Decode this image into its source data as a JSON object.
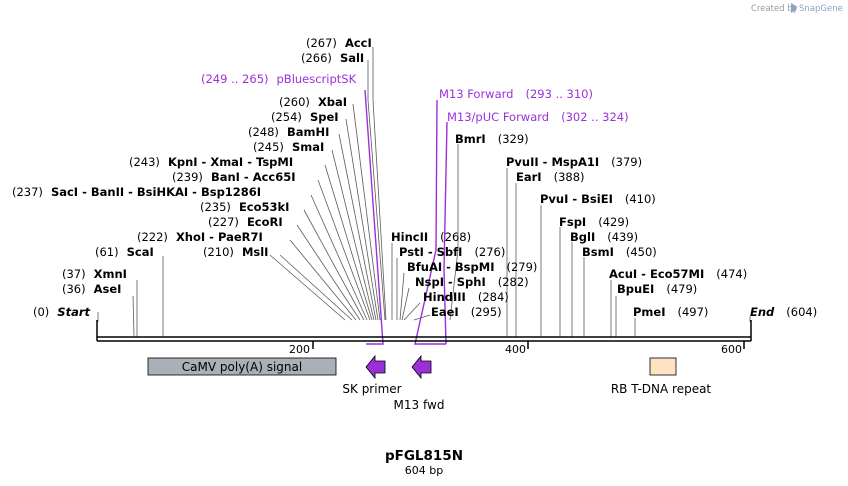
{
  "credit": {
    "prefix": "Created by",
    "brand": "SnapGene"
  },
  "plasmid": {
    "name": "pFGL815N",
    "length": "604 bp"
  },
  "ruler": {
    "ticks": [
      "200",
      "400",
      "600"
    ]
  },
  "sites": [
    {
      "pos": "(267)",
      "name": "AccI"
    },
    {
      "pos": "(266)",
      "name": "SalI"
    },
    {
      "pos": "(260)",
      "name": "XbaI"
    },
    {
      "pos": "(254)",
      "name": "SpeI"
    },
    {
      "pos": "(248)",
      "name": "BamHI"
    },
    {
      "pos": "(245)",
      "name": "SmaI"
    },
    {
      "pos": "(243)",
      "name": "KpnI  -  XmaI  -  TspMI"
    },
    {
      "pos": "(239)",
      "name": "BanI  -  Acc65I"
    },
    {
      "pos": "(237)",
      "name": "SacI  -  BanII  -  BsiHKAI  -  Bsp1286I"
    },
    {
      "pos": "(235)",
      "name": "Eco53kI"
    },
    {
      "pos": "(227)",
      "name": "EcoRI"
    },
    {
      "pos": "(222)",
      "name": "XhoI  -  PaeR7I"
    },
    {
      "pos": "(61)",
      "name": "ScaI"
    },
    {
      "pos": "(210)",
      "name": "MslI"
    },
    {
      "pos": "(37)",
      "name": "XmnI"
    },
    {
      "pos": "(36)",
      "name": "AseI"
    },
    {
      "pos": "(0)",
      "name": "Start"
    },
    {
      "pos": "(268)",
      "name": "HincII"
    },
    {
      "pos": "(276)",
      "name": "PstI  -  SbfI"
    },
    {
      "pos": "(279)",
      "name": "BfuAI  -  BspMI"
    },
    {
      "pos": "(282)",
      "name": "NspI  -  SphI"
    },
    {
      "pos": "(284)",
      "name": "HindIII"
    },
    {
      "pos": "(295)",
      "name": "EaeI"
    },
    {
      "pos": "(329)",
      "name": "BmrI"
    },
    {
      "pos": "(379)",
      "name": "PvuII  -  MspA1I"
    },
    {
      "pos": "(388)",
      "name": "EarI"
    },
    {
      "pos": "(410)",
      "name": "PvuI  -  BsiEI"
    },
    {
      "pos": "(429)",
      "name": "FspI"
    },
    {
      "pos": "(439)",
      "name": "BglI"
    },
    {
      "pos": "(450)",
      "name": "BsmI"
    },
    {
      "pos": "(474)",
      "name": "AcuI  -  Eco57MI"
    },
    {
      "pos": "(479)",
      "name": "BpuEI"
    },
    {
      "pos": "(497)",
      "name": "PmeI"
    },
    {
      "pos": "(604)",
      "name": "End"
    }
  ],
  "primer_sites": [
    {
      "name": "pBluescriptSK",
      "range": "(249 .. 265)"
    },
    {
      "name": "M13 Forward",
      "range": "(293 .. 310)"
    },
    {
      "name": "M13/pUC Forward",
      "range": "(302 .. 324)"
    }
  ],
  "features": [
    {
      "name": "CaMV poly(A) signal",
      "color": "#a9b0b7"
    },
    {
      "name": "RB T-DNA repeat",
      "color": "#fde3c3"
    },
    {
      "name": "SK primer",
      "color": "#9b30d9"
    },
    {
      "name": "M13 fwd",
      "color": "#9b30d9"
    }
  ],
  "colors": {
    "primer": "#9b30d9",
    "backbone": "#000000"
  }
}
